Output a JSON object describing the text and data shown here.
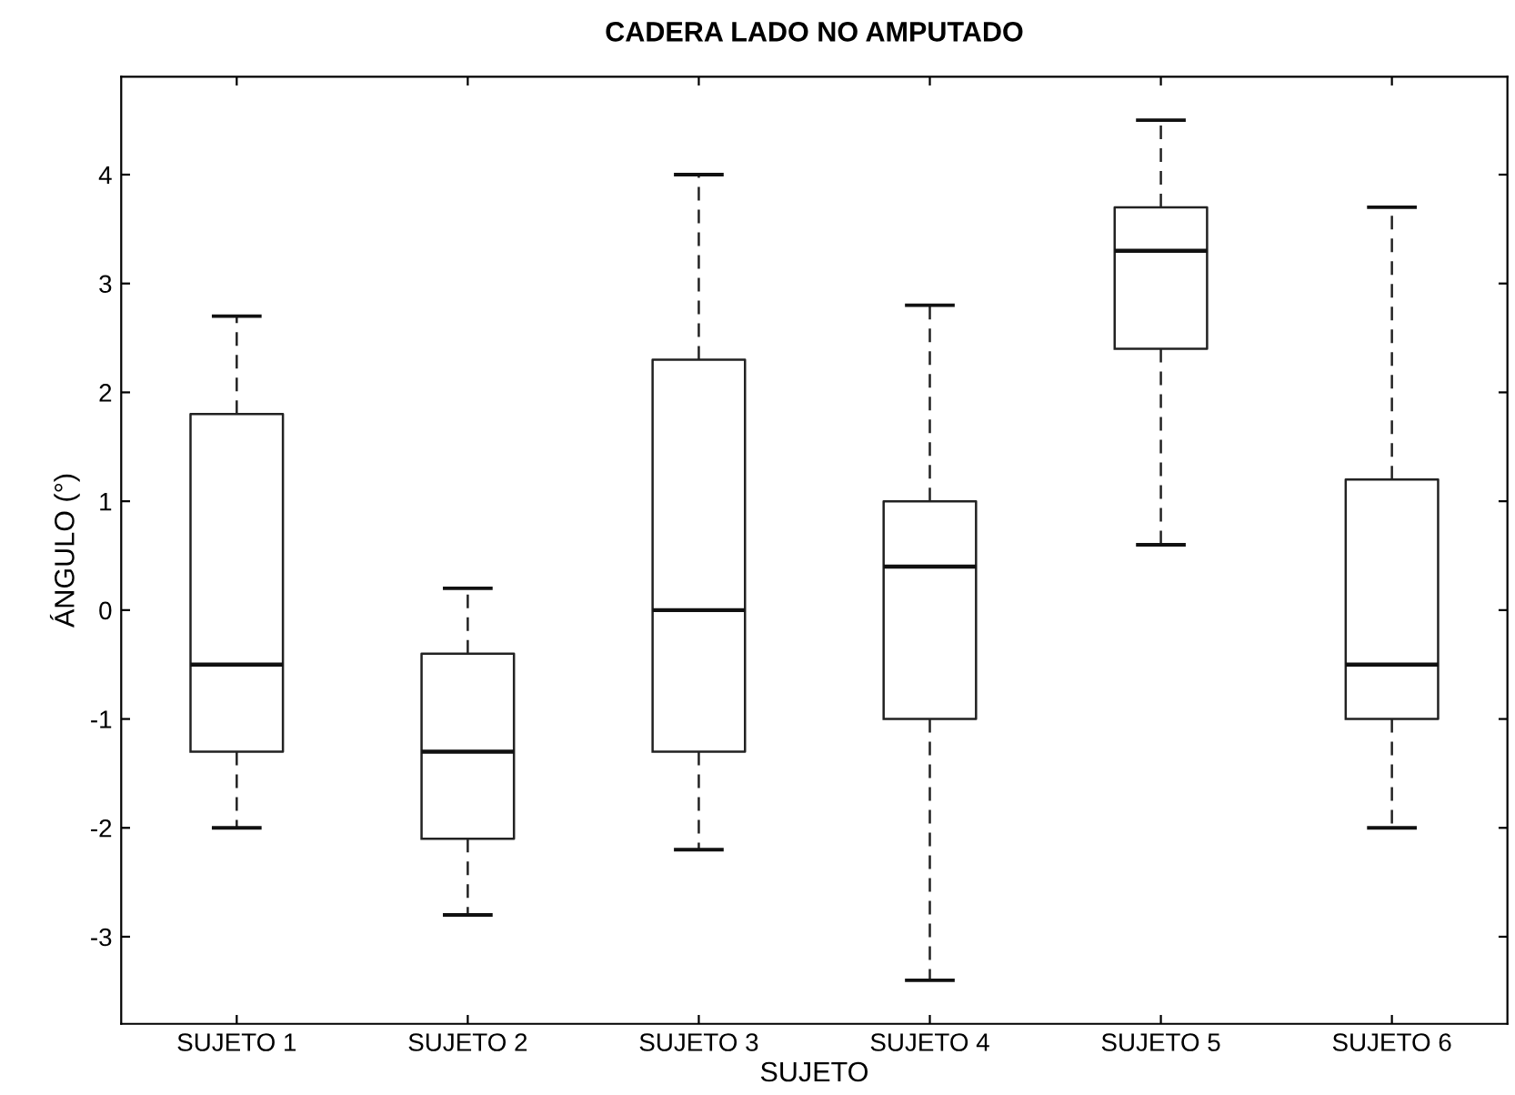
{
  "chart_data": {
    "type": "box",
    "title": "CADERA LADO NO AMPUTADO",
    "xlabel": "SUJETO",
    "ylabel": "ÁNGULO (°)",
    "categories": [
      "SUJETO 1",
      "SUJETO 2",
      "SUJETO 3",
      "SUJETO 4",
      "SUJETO 5",
      "SUJETO 6"
    ],
    "boxes": [
      {
        "low": -2.0,
        "q1": -1.3,
        "median": -0.5,
        "q3": 1.8,
        "high": 2.7
      },
      {
        "low": -2.8,
        "q1": -2.1,
        "median": -1.3,
        "q3": -0.4,
        "high": 0.2
      },
      {
        "low": -2.2,
        "q1": -1.3,
        "median": 0.0,
        "q3": 2.3,
        "high": 4.0
      },
      {
        "low": -3.4,
        "q1": -1.0,
        "median": 0.4,
        "q3": 1.0,
        "high": 2.8
      },
      {
        "low": 0.6,
        "q1": 2.4,
        "median": 3.3,
        "q3": 3.7,
        "high": 4.5
      },
      {
        "low": -2.0,
        "q1": -1.0,
        "median": -0.5,
        "q3": 1.2,
        "high": 3.7
      }
    ],
    "ylim": [
      -3.8,
      4.9
    ],
    "yticks": [
      -3,
      -2,
      -1,
      0,
      1,
      2,
      3,
      4
    ],
    "grid": false
  }
}
